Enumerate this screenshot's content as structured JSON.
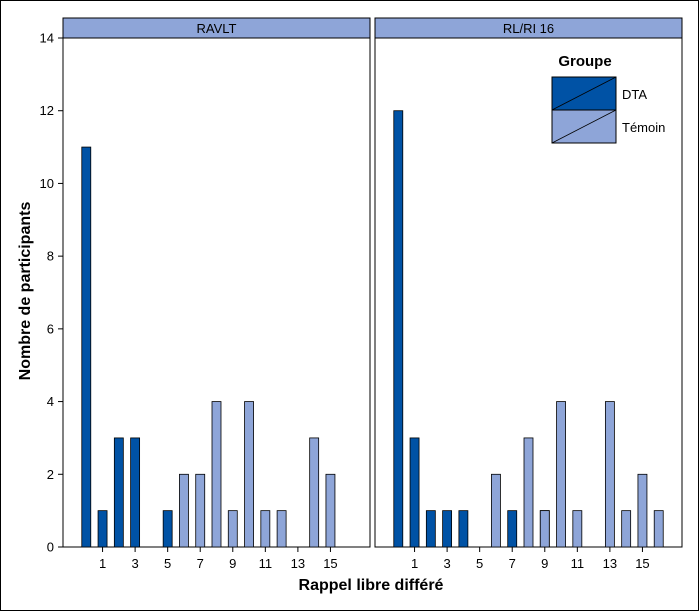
{
  "chart_data": {
    "type": "bar",
    "ylabel": "Nombre de participants",
    "xlabel": "Rappel libre différé",
    "ylim": [
      0,
      14
    ],
    "yticks": [
      "0",
      "2",
      "4",
      "6",
      "8",
      "10",
      "12",
      "14"
    ],
    "xlim": [
      -1,
      17
    ],
    "grid": false,
    "legend": {
      "title": "Groupe",
      "position": "top-right",
      "entries": [
        {
          "name": "DTA",
          "color": "#0052a5"
        },
        {
          "name": "Témoin",
          "color": "#8ea5d8"
        }
      ]
    },
    "panels": [
      {
        "label": "RAVLT",
        "xticks": [
          "1",
          "3",
          "5",
          "7",
          "9",
          "11",
          "13",
          "15"
        ],
        "series": [
          {
            "name": "DTA",
            "x": [
              0,
              1,
              2,
              3,
              5
            ],
            "values": [
              11,
              1,
              3,
              3,
              1
            ]
          },
          {
            "name": "Témoin",
            "x": [
              6,
              7,
              8,
              9,
              10,
              11,
              12,
              14,
              15
            ],
            "values": [
              2,
              2,
              4,
              1,
              4,
              1,
              1,
              3,
              2
            ]
          }
        ]
      },
      {
        "label": "RL/RI 16",
        "xticks": [
          "1",
          "3",
          "5",
          "7",
          "9",
          "11",
          "13",
          "15"
        ],
        "series": [
          {
            "name": "DTA",
            "x": [
              0,
              1,
              2,
              3,
              4,
              7,
              9
            ],
            "values": [
              12,
              3,
              1,
              1,
              1,
              1,
              1
            ]
          },
          {
            "name": "Témoin",
            "x": [
              6,
              8,
              9,
              10,
              11,
              13,
              14,
              15,
              16
            ],
            "values": [
              2,
              3,
              1,
              4,
              1,
              4,
              1,
              2,
              1
            ]
          }
        ]
      }
    ]
  }
}
